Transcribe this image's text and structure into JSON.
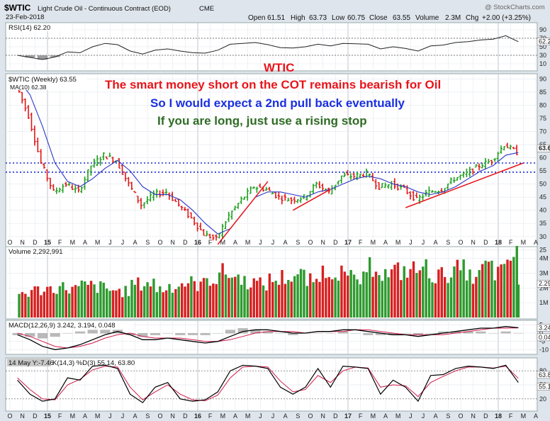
{
  "header": {
    "symbol": "$WTIC",
    "description": "Light Crude Oil - Continuous Contract (EOD)",
    "exchange": "CME",
    "date": "23-Feb-2018",
    "watermark": "@ StockCharts.com",
    "ohlc": {
      "open_label": "Open",
      "open": "61.51",
      "high_label": "High",
      "high": "63.73",
      "low_label": "Low",
      "low": "60.75",
      "close_label": "Close",
      "close": "63.55",
      "volume_label": "Volume",
      "volume": "2.3M",
      "chg_label": "Chg",
      "chg": "+2.00 (+3.25%)"
    }
  },
  "annotations": {
    "title": "WTIC",
    "line1": "The smart money short on the COT remains bearish for Oil",
    "line2": "So I would expect a 2nd pull back eventually",
    "line3": "If you are long,  just use a rising stop"
  },
  "colors": {
    "up": "#1e9e1e",
    "down": "#e01717",
    "ma": "#2b37c8",
    "rsi": "#222222",
    "dotted_support": "#1c2bd6",
    "trendline": "#e8141b",
    "volume_up": "#2e9a2e",
    "volume_down": "#d62020",
    "macd": "#000000",
    "signal": "#d01a4a",
    "histogram": "#8a8a8a",
    "stoch_k": "#000000",
    "stoch_d": "#d01a4a",
    "panel_bg": "#ffffff",
    "page_bg": "#dfe5ec"
  },
  "panels": {
    "rsi": {
      "label": "RSI(14) 62.20",
      "ticks": [
        "90",
        "70",
        "50",
        "30",
        "10"
      ],
      "value_badge": "62.2"
    },
    "price": {
      "label": "$WTIC (Weekly) 63.55",
      "ma_label": "MA(10) 62.38",
      "ticks": [
        "90",
        "85",
        "80",
        "75",
        "70",
        "65",
        "60",
        "55",
        "50",
        "45",
        "40",
        "35",
        "30",
        "25"
      ],
      "value_badge": "63.6"
    },
    "volume": {
      "label": "Volume 2,292,991",
      "ticks": [
        "4M",
        "3M",
        "2M",
        "1M"
      ],
      "value_badge": "2.29"
    },
    "macd": {
      "label": "MACD(12,26,9) 3.242, 3.194, 0.048",
      "ticks": [
        "5",
        "0",
        "-5",
        "-10"
      ],
      "value_badges": [
        "3.24",
        "0.04"
      ]
    },
    "stoch": {
      "label": "14 May Y:-7.46",
      "label2": "K(14,3) %D(3) 55.14, 63.80",
      "ticks": [
        "80",
        "50",
        "20"
      ],
      "value_badges": [
        "63.8",
        "55.1"
      ]
    }
  },
  "x_axis": {
    "labels": [
      "O",
      "N",
      "D",
      "15",
      "F",
      "M",
      "A",
      "M",
      "J",
      "J",
      "A",
      "S",
      "O",
      "N",
      "D",
      "16",
      "F",
      "M",
      "A",
      "M",
      "J",
      "J",
      "A",
      "S",
      "O",
      "N",
      "D",
      "17",
      "F",
      "M",
      "A",
      "M",
      "J",
      "J",
      "A",
      "S",
      "O",
      "N",
      "D",
      "18",
      "F",
      "M",
      "A"
    ],
    "year_labels": [
      "15",
      "16",
      "17",
      "18"
    ]
  },
  "chart_data": {
    "type": "line",
    "title": "$WTIC Light Crude Oil - Continuous Contract (EOD) Weekly",
    "x": [
      "2014-10",
      "2014-11",
      "2014-12",
      "2015-01",
      "2015-02",
      "2015-03",
      "2015-04",
      "2015-05",
      "2015-06",
      "2015-07",
      "2015-08",
      "2015-09",
      "2015-10",
      "2015-11",
      "2015-12",
      "2016-01",
      "2016-02",
      "2016-03",
      "2016-04",
      "2016-05",
      "2016-06",
      "2016-07",
      "2016-08",
      "2016-09",
      "2016-10",
      "2016-11",
      "2016-12",
      "2017-01",
      "2017-02",
      "2017-03",
      "2017-04",
      "2017-05",
      "2017-06",
      "2017-07",
      "2017-08",
      "2017-09",
      "2017-10",
      "2017-11",
      "2017-12",
      "2018-01",
      "2018-02"
    ],
    "ylim": [
      25,
      92
    ],
    "series": [
      {
        "name": "$WTIC (Weekly)",
        "values": [
          88,
          76,
          58,
          47,
          50,
          47,
          57,
          61,
          59,
          50,
          42,
          46,
          47,
          42,
          37,
          31,
          29,
          38,
          44,
          49,
          48,
          45,
          44,
          45,
          50,
          47,
          53,
          53,
          54,
          49,
          50,
          48,
          44,
          47,
          48,
          52,
          54,
          57,
          59,
          65,
          62
        ]
      },
      {
        "name": "MA(10)",
        "values": [
          90,
          84,
          72,
          58,
          51,
          49,
          52,
          56,
          59,
          55,
          49,
          46,
          46,
          44,
          40,
          35,
          31,
          33,
          39,
          45,
          47,
          47,
          46,
          45,
          47,
          48,
          50,
          52,
          53,
          52,
          50,
          49,
          47,
          46,
          47,
          49,
          52,
          55,
          57,
          61,
          62
        ]
      }
    ],
    "horizontal_lines": [
      58,
      54.5
    ],
    "trendlines": [
      {
        "from": [
          "2016-02",
          27
        ],
        "to": [
          "2016-06",
          51
        ]
      },
      {
        "from": [
          "2016-08",
          40
        ],
        "to": [
          "2016-11",
          48
        ]
      },
      {
        "from": [
          "2017-05",
          41
        ],
        "to": [
          "2018-03",
          58
        ]
      }
    ],
    "volume_values_millions": [
      1.7,
      1.9,
      2.0,
      2.1,
      2.0,
      2.2,
      2.1,
      1.9,
      1.8,
      2.3,
      2.4,
      2.0,
      2.2,
      2.4,
      2.3,
      2.7,
      3.1,
      2.8,
      2.5,
      2.3,
      2.6,
      2.8,
      2.9,
      2.5,
      3.2,
      3.3,
      2.7,
      2.6,
      3.6,
      3.0,
      3.2,
      3.3,
      3.4,
      2.9,
      3.1,
      3.3,
      2.8,
      3.5,
      3.1,
      4.2,
      2.3
    ],
    "rsi_values": [
      30,
      25,
      20,
      26,
      38,
      36,
      50,
      58,
      55,
      40,
      33,
      42,
      45,
      40,
      36,
      35,
      42,
      56,
      58,
      60,
      55,
      48,
      47,
      50,
      56,
      52,
      58,
      57,
      56,
      45,
      50,
      46,
      40,
      52,
      54,
      60,
      62,
      66,
      68,
      76,
      62
    ],
    "macd_values": [
      -1,
      -4,
      -8,
      -10,
      -9,
      -7,
      -4,
      -1,
      1,
      -1,
      -4,
      -4,
      -3,
      -4,
      -5,
      -6,
      -5,
      -2,
      1,
      2,
      2,
      1,
      0,
      0,
      1,
      1,
      2,
      2,
      1,
      0,
      -1,
      -1,
      -2,
      -1,
      0,
      1,
      2,
      3,
      3,
      4,
      3.24
    ],
    "signal_values": [
      0,
      -2,
      -5,
      -8,
      -9,
      -8,
      -6,
      -3,
      -1,
      0,
      -2,
      -3,
      -3,
      -3,
      -4,
      -5,
      -5,
      -4,
      -2,
      0,
      1,
      1,
      1,
      0,
      1,
      1,
      1,
      2,
      2,
      1,
      0,
      -1,
      -1,
      -1,
      -1,
      0,
      1,
      2,
      3,
      3,
      3.19
    ],
    "stoch_k_values": [
      60,
      30,
      15,
      20,
      65,
      60,
      90,
      92,
      85,
      30,
      12,
      45,
      55,
      20,
      15,
      18,
      35,
      80,
      92,
      90,
      85,
      45,
      30,
      45,
      85,
      45,
      90,
      88,
      85,
      30,
      60,
      45,
      15,
      70,
      72,
      85,
      90,
      88,
      85,
      92,
      55
    ],
    "stoch_d_values": [
      65,
      40,
      20,
      18,
      50,
      62,
      82,
      90,
      88,
      45,
      18,
      35,
      50,
      30,
      18,
      16,
      28,
      65,
      88,
      90,
      88,
      58,
      35,
      40,
      70,
      55,
      80,
      88,
      86,
      45,
      50,
      48,
      25,
      55,
      68,
      80,
      88,
      88,
      86,
      90,
      64
    ]
  }
}
